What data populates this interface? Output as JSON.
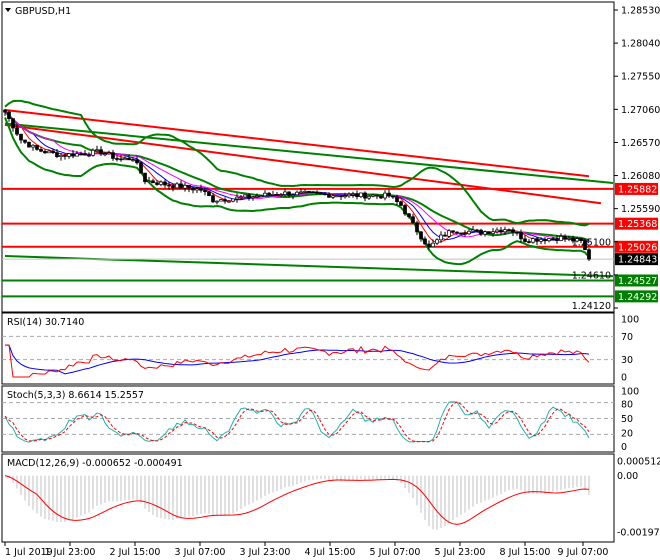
{
  "chart_data": {
    "type": "candlestick",
    "symbol_title": "GBPUSD,H1",
    "price_axis": {
      "ticks": [
        "1.28530",
        "1.28040",
        "1.27550",
        "1.27060",
        "1.26570",
        "1.26080",
        "1.25590",
        "1.25100",
        "1.24610",
        "1.24120"
      ],
      "ylim": [
        1.2412,
        1.2853
      ]
    },
    "close_path": [
      [
        0,
        1.2702
      ],
      [
        4,
        1.2661
      ],
      [
        8,
        1.2646
      ],
      [
        14,
        1.2638
      ],
      [
        24,
        1.2643
      ],
      [
        29,
        1.2631
      ],
      [
        32,
        1.2634
      ],
      [
        35,
        1.2601
      ],
      [
        41,
        1.2594
      ],
      [
        49,
        1.2587
      ],
      [
        52,
        1.2572
      ],
      [
        59,
        1.2575
      ],
      [
        69,
        1.2582
      ],
      [
        84,
        1.2579
      ],
      [
        96,
        1.2578
      ],
      [
        99,
        1.2564
      ],
      [
        102,
        1.2535
      ],
      [
        106,
        1.2501
      ],
      [
        109,
        1.2517
      ],
      [
        112,
        1.2527
      ],
      [
        119,
        1.2524
      ],
      [
        126,
        1.253
      ],
      [
        130,
        1.2513
      ],
      [
        139,
        1.2516
      ],
      [
        144,
        1.251
      ],
      [
        146,
        1.24843
      ]
    ],
    "horizontal_levels": [
      {
        "label": "1.25882",
        "value": 1.25882,
        "color": "#ff0000"
      },
      {
        "label": "1.25368",
        "value": 1.25368,
        "color": "#ff0000"
      },
      {
        "label": "1.25026",
        "value": 1.25026,
        "color": "#ff0000"
      },
      {
        "label": "1.24527",
        "value": 1.24527,
        "color": "#008000"
      },
      {
        "label": "1.24292",
        "value": 1.24292,
        "color": "#008000"
      }
    ],
    "current_price": {
      "label": "1.24843",
      "value": 1.24843
    },
    "trend_lines": [
      {
        "color": "#ff0000",
        "from": [
          0,
          1.2705
        ],
        "to": [
          146,
          1.2607
        ]
      },
      {
        "color": "#ff0000",
        "from": [
          0,
          1.2683
        ],
        "to": [
          149,
          1.2567
        ]
      },
      {
        "color": "#008000",
        "from": [
          0,
          1.2685
        ],
        "to": [
          152,
          1.2597
        ]
      },
      {
        "color": "#008000",
        "from": [
          0,
          1.2489
        ],
        "to": [
          152,
          1.2459
        ]
      }
    ],
    "time_axis": [
      "1 Jul 2019",
      "1 Jul 23:00",
      "2 Jul 15:00",
      "3 Jul 07:00",
      "3 Jul 23:00",
      "4 Jul 15:00",
      "5 Jul 07:00",
      "5 Jul 23:00",
      "8 Jul 15:00",
      "9 Jul 07:00"
    ],
    "rsi": {
      "title": "RSI(14) 30.7140",
      "levels": [
        "100",
        "70",
        "30",
        "0"
      ]
    },
    "stoch": {
      "title": "Stoch(5,3,3) 8.6614 15.2557",
      "levels": [
        "100",
        "80",
        "50",
        "20",
        "0"
      ]
    },
    "macd": {
      "title": "MACD(12,26,9) -0.000652 -0.000491",
      "levels": [
        "0.000512",
        "0.00",
        "-0.001971"
      ],
      "ylim": [
        -0.001971,
        0.000512
      ]
    },
    "colors": {
      "bull": "#000000",
      "bear": "#000000",
      "bands": "#008000",
      "ma_fast": "#ff0000",
      "ma_mid": "#0000ff",
      "ma_slow": "#ff00ff",
      "rsi": "#ff0000",
      "rsi_signal": "#0000ff",
      "stoch_main": "#20b2aa",
      "stoch_signal": "#ff0000",
      "macd_hist": "#c0c0c0",
      "macd_signal": "#ff0000"
    }
  }
}
